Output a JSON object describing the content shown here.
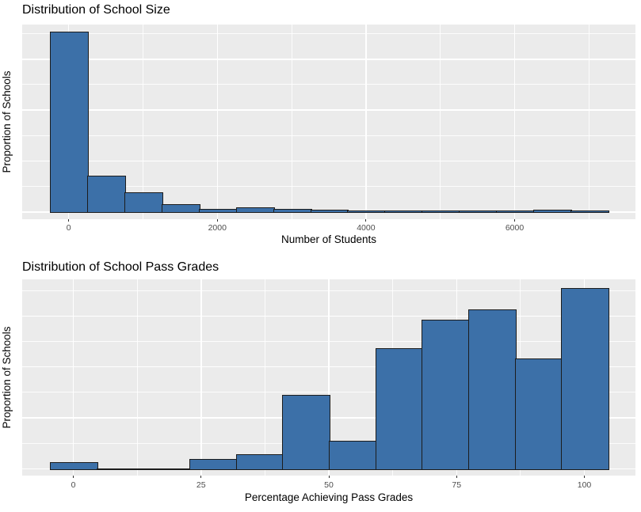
{
  "page": {
    "background": "#FFFFFF"
  },
  "style": {
    "bar_fill": "#3C70A8",
    "bar_stroke": "#1C1C1C",
    "panel_background": "#EBEBEB",
    "grid_color": "#FFFFFF",
    "tick_label_color": "#4D4D4D",
    "tick_mark_color": "#333333",
    "title_color": "#000000"
  },
  "chart_data": [
    {
      "type": "bar",
      "subtype": "histogram",
      "title": "Distribution of School Size",
      "xlabel": "Number of Students",
      "ylabel": "Proportion of Schools",
      "legend": "none",
      "grid": true,
      "bin_width": 500,
      "bin_centers": [
        0,
        500,
        1000,
        1500,
        2000,
        2500,
        3000,
        3500,
        4000,
        4500,
        5000,
        5500,
        6000,
        6500,
        7000
      ],
      "values": [
        0.704,
        0.139,
        0.0745,
        0.0264,
        0.0093,
        0.0165,
        0.0093,
        0.0062,
        0.0031,
        0.0031,
        0.0031,
        0.0031,
        0.0031,
        0.0053,
        0.0031
      ],
      "x_ticks": [
        0,
        2000,
        4000,
        6000
      ],
      "x_tick_labels": [
        "0",
        "2000",
        "4000",
        "6000"
      ],
      "x_minor_ticks": [
        1000,
        3000,
        5000,
        7000
      ],
      "xlim": [
        -625,
        7625
      ],
      "ylim": [
        -0.028,
        0.736
      ],
      "y_grid_step": 0.1,
      "y_grid_major_every": 2,
      "y_tick_labels_shown": false
    },
    {
      "type": "bar",
      "subtype": "histogram",
      "title": "Distribution of School Pass Grades",
      "xlabel": "Percentage Achieving Pass Grades",
      "ylabel": "Proportion of Schools",
      "legend": "none",
      "grid": true,
      "bin_width": 9.0909,
      "bin_centers": [
        0,
        9.09,
        18.18,
        27.27,
        36.36,
        45.45,
        54.55,
        63.64,
        72.73,
        81.82,
        90.91,
        100
      ],
      "values": [
        0.0075,
        0,
        0,
        0.0115,
        0.0168,
        0.0863,
        0.0328,
        0.1412,
        0.1754,
        0.1871,
        0.1297,
        0.212
      ],
      "x_ticks": [
        0,
        25,
        50,
        75,
        100
      ],
      "x_tick_labels": [
        "0",
        "25",
        "50",
        "75",
        "100"
      ],
      "x_minor_ticks": [
        12.5,
        37.5,
        62.5,
        87.5
      ],
      "xlim": [
        -10,
        110
      ],
      "ylim": [
        -0.0079,
        0.2232
      ],
      "y_grid_step": 0.03,
      "y_grid_major_every": 2,
      "y_tick_labels_shown": false
    }
  ]
}
